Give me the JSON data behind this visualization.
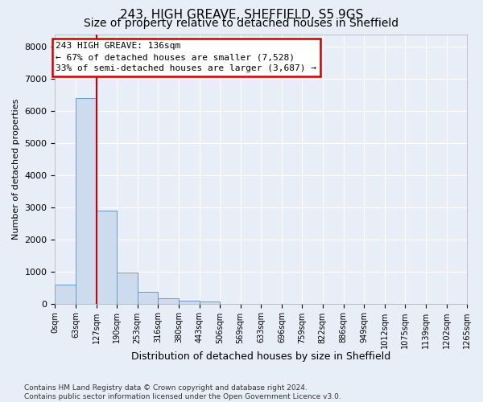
{
  "title1": "243, HIGH GREAVE, SHEFFIELD, S5 9GS",
  "title2": "Size of property relative to detached houses in Sheffield",
  "xlabel": "Distribution of detached houses by size in Sheffield",
  "ylabel": "Number of detached properties",
  "bar_color": "#ccdcee",
  "bar_edge_color": "#6699cc",
  "vline_color": "#cc0000",
  "vline_x": 127,
  "bin_edges": [
    0,
    63,
    127,
    190,
    253,
    316,
    380,
    443,
    506,
    569,
    633,
    696,
    759,
    822,
    886,
    949,
    1012,
    1075,
    1139,
    1202,
    1265
  ],
  "bin_labels": [
    "0sqm",
    "63sqm",
    "127sqm",
    "190sqm",
    "253sqm",
    "316sqm",
    "380sqm",
    "443sqm",
    "506sqm",
    "569sqm",
    "633sqm",
    "696sqm",
    "759sqm",
    "822sqm",
    "886sqm",
    "949sqm",
    "1012sqm",
    "1075sqm",
    "1139sqm",
    "1202sqm",
    "1265sqm"
  ],
  "bar_heights": [
    580,
    6400,
    2900,
    970,
    360,
    165,
    95,
    70,
    0,
    0,
    0,
    0,
    0,
    0,
    0,
    0,
    0,
    0,
    0,
    0
  ],
  "ylim": [
    0,
    8400
  ],
  "yticks": [
    0,
    1000,
    2000,
    3000,
    4000,
    5000,
    6000,
    7000,
    8000
  ],
  "annotation_line1": "243 HIGH GREAVE: 136sqm",
  "annotation_line2": "← 67% of detached houses are smaller (7,528)",
  "annotation_line3": "33% of semi-detached houses are larger (3,687) →",
  "annotation_box_color": "#ffffff",
  "annotation_box_edge": "#cc0000",
  "footer_text": "Contains HM Land Registry data © Crown copyright and database right 2024.\nContains public sector information licensed under the Open Government Licence v3.0.",
  "bg_color": "#e8eef8",
  "grid_color": "#ffffff",
  "title1_fontsize": 11,
  "title2_fontsize": 10,
  "ylabel_fontsize": 8,
  "xlabel_fontsize": 9,
  "ytick_fontsize": 8,
  "xtick_fontsize": 7
}
